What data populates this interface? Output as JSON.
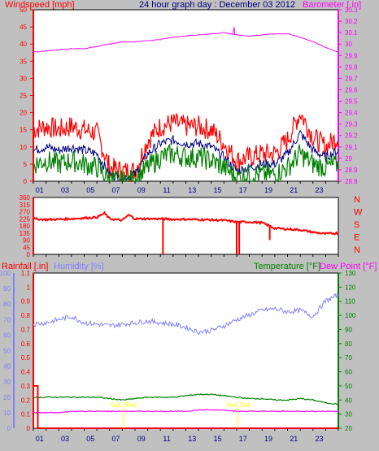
{
  "header": {
    "windspeed_label": "Windspeed [mph]",
    "title": "24 hour graph day : December 03 2012",
    "barometer_label": "Barometer [.in]"
  },
  "colors": {
    "background": "#c0c0c0",
    "plot_bg": "#ffffff",
    "gust": "#ff0000",
    "wind_avg": "#000080",
    "wind_low": "#008000",
    "barometer": "#ff00ff",
    "direction": "#ff0000",
    "humidity": "#8080ff",
    "temperature": "#008000",
    "dewpoint": "#ff00ff",
    "rain": "#ff0000",
    "marker": "#ffff00",
    "axis_text_blue": "#000080"
  },
  "chart_data": [
    {
      "type": "line",
      "title": "24 hour graph day : December 03 2012",
      "x_ticks": [
        "01",
        "03",
        "05",
        "07",
        "09",
        "11",
        "13",
        "15",
        "17",
        "19",
        "21",
        "23"
      ],
      "left_axis": {
        "label": "Windspeed [mph]",
        "ylim": [
          0,
          50
        ],
        "ticks": [
          0,
          5,
          10,
          15,
          20,
          25,
          30,
          35,
          40,
          45,
          50
        ]
      },
      "right_axis": {
        "label": "Barometer [.in]",
        "ylim": [
          28.8,
          30.3
        ],
        "ticks": [
          "28.8",
          "28.9",
          "29",
          "29.1",
          "29.2",
          "29.3",
          "29.4",
          "29.5",
          "29.6",
          "29.7",
          "29.8",
          "29.9",
          "30",
          "30.1",
          "30.2",
          "30.3"
        ]
      },
      "x": [
        0,
        1,
        2,
        3,
        4,
        5,
        6,
        7,
        8,
        9,
        10,
        11,
        12,
        13,
        14,
        15,
        16,
        17,
        18,
        19,
        20,
        21,
        22,
        23,
        24
      ],
      "series": [
        {
          "axis": "left",
          "values": [
            15,
            16,
            15,
            16,
            15,
            14,
            4,
            3,
            3,
            12,
            16,
            17,
            16,
            16,
            15,
            11,
            6,
            7,
            8,
            8,
            12,
            20,
            13,
            10,
            13
          ]
        },
        {
          "axis": "left",
          "values": [
            9,
            10,
            9,
            10,
            9,
            8,
            2,
            1,
            2,
            8,
            11,
            12,
            11,
            11,
            10,
            7,
            3,
            4,
            5,
            5,
            8,
            14,
            9,
            7,
            9
          ]
        },
        {
          "axis": "left",
          "values": [
            5,
            6,
            5,
            6,
            5,
            4,
            0.5,
            0,
            0.5,
            4,
            7,
            8,
            7,
            7,
            6,
            4,
            1,
            2,
            2,
            2,
            4,
            8,
            5,
            4,
            5
          ]
        },
        {
          "axis": "right",
          "values": [
            29.93,
            29.94,
            29.95,
            29.96,
            29.96,
            29.98,
            30,
            30.02,
            30.02,
            30.03,
            30.04,
            30.06,
            30.07,
            30.08,
            30.09,
            30.1,
            30.08,
            30.07,
            30.08,
            30.09,
            30.09,
            30.06,
            30.02,
            29.97,
            29.93
          ]
        }
      ],
      "barometer_spike": {
        "x": 15.8,
        "value": 30.15
      }
    },
    {
      "type": "line",
      "y_ticks": [
        0,
        45,
        90,
        135,
        180,
        225,
        270,
        315,
        360
      ],
      "compass_labels": [
        "N",
        "W",
        "S",
        "E",
        "N"
      ],
      "ylim": [
        0,
        360
      ],
      "x": [
        0,
        1,
        2,
        3,
        4,
        5,
        5.6,
        6,
        7,
        7.5,
        8,
        9,
        10,
        11,
        12,
        13,
        14,
        15,
        16,
        17,
        18,
        19,
        20,
        21,
        22,
        23,
        24
      ],
      "values": [
        225,
        220,
        222,
        225,
        230,
        235,
        260,
        225,
        215,
        250,
        225,
        225,
        225,
        222,
        222,
        220,
        218,
        215,
        205,
        205,
        200,
        165,
        160,
        155,
        140,
        130,
        135
      ],
      "drops": [
        {
          "x": 10.2,
          "to": 0
        },
        {
          "x": 16.0,
          "to": 0
        },
        {
          "x": 16.2,
          "to": 0
        },
        {
          "x": 18.6,
          "to": 90
        }
      ]
    },
    {
      "type": "line",
      "legend": {
        "rainfall": "Rainfall [.in]",
        "humidity": "Humidity [%]",
        "temperature": "Temperature [°F]",
        "dewpoint": "Dew Point [°F]"
      },
      "left_outer_axis": {
        "ylim": [
          0,
          100
        ],
        "ticks": [
          0,
          10,
          20,
          30,
          40,
          50,
          60,
          70,
          80,
          90,
          100
        ]
      },
      "left_inner_axis": {
        "ylim": [
          0,
          1.1
        ],
        "ticks": [
          "0",
          "0.1",
          "0.2",
          "0.3",
          "0.4",
          "0.5",
          "0.6",
          "0.7",
          "0.8",
          "0.9",
          "1",
          "1.1"
        ]
      },
      "right_axis": {
        "ylim": [
          20,
          130
        ],
        "ticks": [
          20,
          30,
          40,
          50,
          60,
          70,
          80,
          90,
          100,
          110,
          120,
          130
        ]
      },
      "x": [
        0,
        1,
        2,
        3,
        4,
        5,
        6,
        7,
        8,
        9,
        10,
        11,
        12,
        13,
        14,
        15,
        16,
        17,
        18,
        19,
        20,
        21,
        22,
        23,
        24
      ],
      "humidity": [
        67,
        68,
        70,
        72,
        68,
        67,
        66,
        67,
        68,
        69,
        68,
        67,
        65,
        62,
        63,
        66,
        70,
        73,
        76,
        77,
        75,
        76,
        72,
        82,
        86
      ],
      "temperature": [
        42,
        42,
        42,
        42,
        42,
        42,
        41,
        40,
        41,
        42,
        42,
        42,
        43,
        44,
        44,
        43,
        42,
        41,
        41,
        40,
        40,
        41,
        40,
        38,
        37
      ],
      "dewpoint": [
        31,
        31,
        31,
        32,
        32,
        32,
        32,
        32,
        32,
        32,
        32,
        32,
        32,
        33,
        33,
        33,
        32,
        32,
        32,
        32,
        32,
        32,
        32,
        32,
        32
      ],
      "rainfall": [
        0.3,
        0,
        0,
        0,
        0,
        0,
        0,
        0,
        0,
        0,
        0,
        0,
        0,
        0,
        0,
        0,
        0,
        0,
        0,
        0,
        0,
        0,
        0,
        0,
        0
      ],
      "markers": [
        {
          "x": 7.1,
          "label": "Sun Rise"
        },
        {
          "x": 16.1,
          "label": "Sun Set"
        }
      ]
    }
  ],
  "x_axis_ticks": [
    "01",
    "03",
    "05",
    "07",
    "09",
    "11",
    "13",
    "15",
    "17",
    "19",
    "21",
    "23"
  ]
}
